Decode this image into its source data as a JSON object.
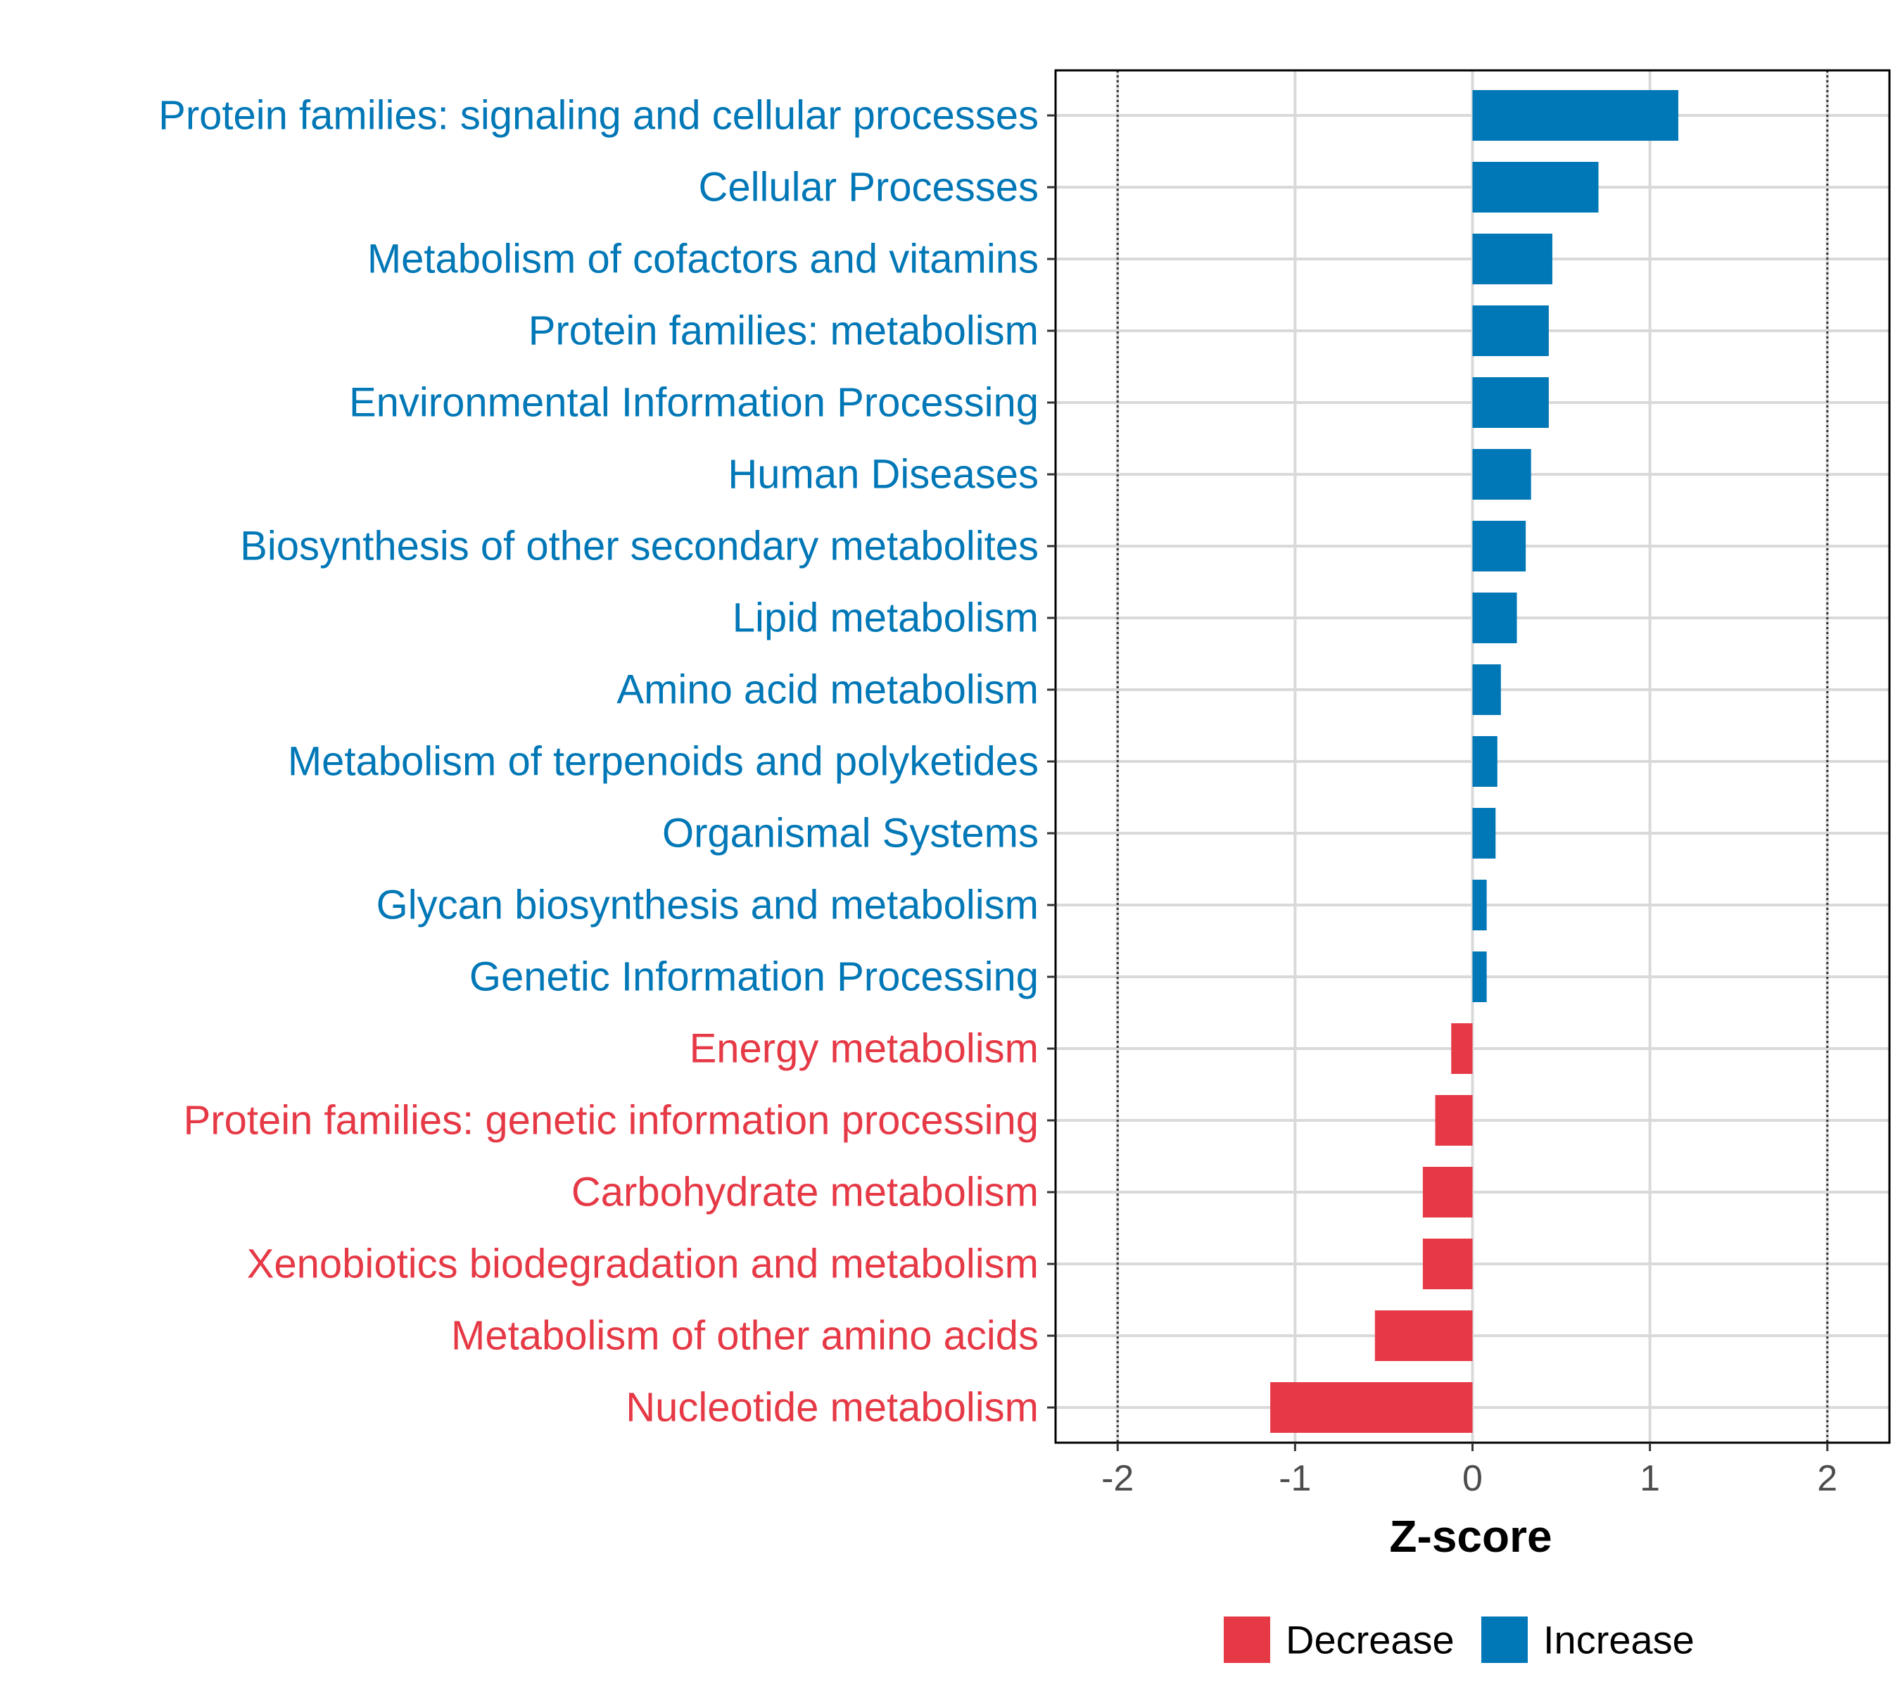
{
  "chart_data": {
    "type": "bar",
    "orientation": "horizontal",
    "title": "",
    "xlabel": "Z-score",
    "ylabel": "",
    "xlim": [
      -2.35,
      2.35
    ],
    "x_ticks": [
      -2,
      -1,
      0,
      1,
      2
    ],
    "x_tick_labels": [
      "-2",
      "-1",
      "0",
      "1",
      "2"
    ],
    "reference_lines": [
      -2,
      2
    ],
    "grid": true,
    "legend_position": "bottom",
    "colors": {
      "Decrease": "#E63946",
      "Increase": "#0077B6"
    },
    "legend": [
      {
        "name": "Decrease",
        "color": "#E63946"
      },
      {
        "name": "Increase",
        "color": "#0077B6"
      }
    ],
    "categories": [
      "Protein families: signaling and cellular processes",
      "Cellular Processes",
      "Metabolism of cofactors and vitamins",
      "Protein families: metabolism",
      "Environmental Information Processing",
      "Human Diseases",
      "Biosynthesis of other secondary metabolites",
      "Lipid metabolism",
      "Amino acid metabolism",
      "Metabolism of terpenoids and polyketides",
      "Organismal Systems",
      "Glycan biosynthesis and metabolism",
      "Genetic Information Processing",
      "Energy metabolism",
      "Protein families: genetic information processing",
      "Carbohydrate metabolism",
      "Xenobiotics biodegradation and metabolism",
      "Metabolism of other amino acids",
      "Nucleotide metabolism"
    ],
    "values": [
      1.16,
      0.71,
      0.45,
      0.43,
      0.43,
      0.33,
      0.3,
      0.25,
      0.16,
      0.14,
      0.13,
      0.08,
      0.08,
      -0.12,
      -0.21,
      -0.28,
      -0.28,
      -0.55,
      -1.14
    ],
    "groups": [
      "Increase",
      "Increase",
      "Increase",
      "Increase",
      "Increase",
      "Increase",
      "Increase",
      "Increase",
      "Increase",
      "Increase",
      "Increase",
      "Increase",
      "Increase",
      "Decrease",
      "Decrease",
      "Decrease",
      "Decrease",
      "Decrease",
      "Decrease"
    ]
  }
}
